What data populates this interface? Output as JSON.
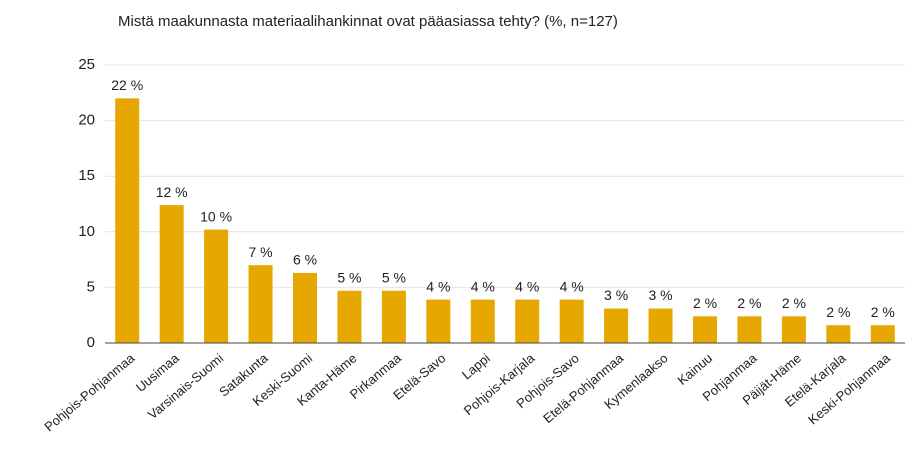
{
  "chart_data": {
    "type": "bar",
    "title": "Mistä maakunnasta materiaalihankinnat ovat pääasiassa tehty? (%, n=127)",
    "categories": [
      "Pohjois-Pohjanmaa",
      "Uusimaa",
      "Varsinais-Suomi",
      "Satakunta",
      "Keski-Suomi",
      "Kanta-Häme",
      "Pirkanmaa",
      "Etelä-Savo",
      "Lappi",
      "Pohjois-Karjala",
      "Pohjois-Savo",
      "Etelä-Pohjanmaa",
      "Kymenlaakso",
      "Kainuu",
      "Pohjanmaa",
      "Päijät-Häme",
      "Etelä-Karjala",
      "Keski-Pohjanmaa"
    ],
    "values": [
      22.0,
      12.4,
      10.2,
      7.0,
      6.3,
      4.7,
      4.7,
      3.9,
      3.9,
      3.9,
      3.9,
      3.1,
      3.1,
      2.4,
      2.4,
      2.4,
      1.6,
      1.6
    ],
    "value_labels": [
      "22 %",
      "12 %",
      "10 %",
      "7 %",
      "6 %",
      "5 %",
      "5 %",
      "4 %",
      "4 %",
      "4 %",
      "4 %",
      "3 %",
      "3 %",
      "2 %",
      "2 %",
      "2 %",
      "2 %",
      "2 %"
    ],
    "color": "#e6a700",
    "ylim": [
      0,
      25
    ],
    "yticks": [
      0,
      5,
      10,
      15,
      20,
      25
    ],
    "grid": true
  }
}
